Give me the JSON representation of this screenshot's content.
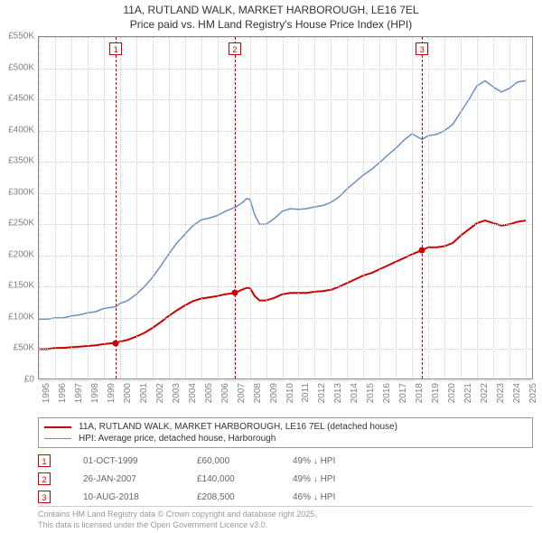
{
  "title_line1": "11A, RUTLAND WALK, MARKET HARBOROUGH, LE16 7EL",
  "title_line2": "Price paid vs. HM Land Registry's House Price Index (HPI)",
  "chart": {
    "type": "line",
    "background_color": "#ffffff",
    "grid_color": "#d0d0d0",
    "border_color": "#888888",
    "x_range": [
      1995,
      2025.5
    ],
    "y_range": [
      0,
      550
    ],
    "y_ticks": [
      0,
      50,
      100,
      150,
      200,
      250,
      300,
      350,
      400,
      450,
      500,
      550
    ],
    "y_tick_labels": [
      "£0",
      "£50K",
      "£100K",
      "£150K",
      "£200K",
      "£250K",
      "£300K",
      "£350K",
      "£400K",
      "£450K",
      "£500K",
      "£550K"
    ],
    "x_ticks": [
      1995,
      1996,
      1997,
      1998,
      1999,
      2000,
      2001,
      2002,
      2003,
      2004,
      2005,
      2006,
      2007,
      2008,
      2009,
      2010,
      2011,
      2012,
      2013,
      2014,
      2015,
      2016,
      2017,
      2018,
      2019,
      2020,
      2021,
      2022,
      2023,
      2024,
      2025
    ],
    "series": [
      {
        "id": "price_paid",
        "label": "11A, RUTLAND WALK, MARKET HARBOROUGH, LE16 7EL (detached house)",
        "color": "#cc0000",
        "line_width": 2,
        "data": [
          [
            1995,
            50
          ],
          [
            1995.5,
            50
          ],
          [
            1996,
            52
          ],
          [
            1996.5,
            52
          ],
          [
            1997,
            53
          ],
          [
            1997.5,
            54
          ],
          [
            1998,
            55
          ],
          [
            1998.5,
            56
          ],
          [
            1999,
            58
          ],
          [
            1999.75,
            60
          ],
          [
            2000,
            62
          ],
          [
            2000.5,
            65
          ],
          [
            2001,
            70
          ],
          [
            2001.5,
            76
          ],
          [
            2002,
            84
          ],
          [
            2002.5,
            93
          ],
          [
            2003,
            103
          ],
          [
            2003.5,
            112
          ],
          [
            2004,
            120
          ],
          [
            2004.5,
            127
          ],
          [
            2005,
            131
          ],
          [
            2005.5,
            133
          ],
          [
            2006,
            135
          ],
          [
            2006.5,
            138
          ],
          [
            2007.08,
            140
          ],
          [
            2007.5,
            145
          ],
          [
            2007.8,
            148
          ],
          [
            2008,
            148
          ],
          [
            2008.3,
            135
          ],
          [
            2008.6,
            128
          ],
          [
            2009,
            128
          ],
          [
            2009.5,
            132
          ],
          [
            2010,
            138
          ],
          [
            2010.5,
            140
          ],
          [
            2011,
            140
          ],
          [
            2011.5,
            140
          ],
          [
            2012,
            142
          ],
          [
            2012.5,
            143
          ],
          [
            2013,
            145
          ],
          [
            2013.5,
            150
          ],
          [
            2014,
            156
          ],
          [
            2014.5,
            162
          ],
          [
            2015,
            168
          ],
          [
            2015.5,
            172
          ],
          [
            2016,
            178
          ],
          [
            2016.5,
            184
          ],
          [
            2017,
            190
          ],
          [
            2017.5,
            196
          ],
          [
            2018,
            202
          ],
          [
            2018.61,
            208.5
          ],
          [
            2019,
            213
          ],
          [
            2019.5,
            213
          ],
          [
            2020,
            215
          ],
          [
            2020.5,
            220
          ],
          [
            2021,
            232
          ],
          [
            2021.5,
            242
          ],
          [
            2022,
            252
          ],
          [
            2022.5,
            256
          ],
          [
            2023,
            252
          ],
          [
            2023.5,
            248
          ],
          [
            2024,
            250
          ],
          [
            2024.5,
            254
          ],
          [
            2025,
            256
          ]
        ]
      },
      {
        "id": "hpi",
        "label": "HPI: Average price, detached house, Harborough",
        "color": "#6b8fc7",
        "line_width": 1.5,
        "data": [
          [
            1995,
            98
          ],
          [
            1995.5,
            98
          ],
          [
            1996,
            100
          ],
          [
            1996.5,
            100
          ],
          [
            1997,
            103
          ],
          [
            1997.5,
            105
          ],
          [
            1998,
            108
          ],
          [
            1998.5,
            110
          ],
          [
            1999,
            115
          ],
          [
            1999.75,
            118
          ],
          [
            2000,
            123
          ],
          [
            2000.5,
            128
          ],
          [
            2001,
            138
          ],
          [
            2001.5,
            150
          ],
          [
            2002,
            165
          ],
          [
            2002.5,
            183
          ],
          [
            2003,
            202
          ],
          [
            2003.5,
            220
          ],
          [
            2004,
            234
          ],
          [
            2004.5,
            248
          ],
          [
            2005,
            257
          ],
          [
            2005.5,
            260
          ],
          [
            2006,
            264
          ],
          [
            2006.5,
            271
          ],
          [
            2007.08,
            277
          ],
          [
            2007.5,
            284
          ],
          [
            2007.8,
            291
          ],
          [
            2008,
            290
          ],
          [
            2008.3,
            265
          ],
          [
            2008.6,
            250
          ],
          [
            2009,
            250
          ],
          [
            2009.5,
            259
          ],
          [
            2010,
            271
          ],
          [
            2010.5,
            275
          ],
          [
            2011,
            274
          ],
          [
            2011.5,
            275
          ],
          [
            2012,
            278
          ],
          [
            2012.5,
            280
          ],
          [
            2013,
            285
          ],
          [
            2013.5,
            294
          ],
          [
            2014,
            307
          ],
          [
            2014.5,
            318
          ],
          [
            2015,
            329
          ],
          [
            2015.5,
            338
          ],
          [
            2016,
            349
          ],
          [
            2016.5,
            361
          ],
          [
            2017,
            372
          ],
          [
            2017.5,
            385
          ],
          [
            2018,
            395
          ],
          [
            2018.61,
            386
          ],
          [
            2019,
            392
          ],
          [
            2019.5,
            394
          ],
          [
            2020,
            400
          ],
          [
            2020.5,
            410
          ],
          [
            2021,
            430
          ],
          [
            2021.5,
            450
          ],
          [
            2022,
            472
          ],
          [
            2022.5,
            480
          ],
          [
            2023,
            470
          ],
          [
            2023.5,
            462
          ],
          [
            2024,
            468
          ],
          [
            2024.5,
            478
          ],
          [
            2025,
            480
          ]
        ]
      }
    ],
    "markers": [
      {
        "n": "1",
        "x": 1999.75,
        "date": "01-OCT-1999",
        "price": "£60,000",
        "hpi": "49% ↓ HPI",
        "dot_y": 60
      },
      {
        "n": "2",
        "x": 2007.07,
        "date": "26-JAN-2007",
        "price": "£140,000",
        "hpi": "49% ↓ HPI",
        "dot_y": 140
      },
      {
        "n": "3",
        "x": 2018.61,
        "date": "10-AUG-2018",
        "price": "£208,500",
        "hpi": "46% ↓ HPI",
        "dot_y": 208.5
      }
    ],
    "axis_label_color": "#808080",
    "axis_fontsize": 10
  },
  "footer_line1": "Contains HM Land Registry data © Crown copyright and database right 2025.",
  "footer_line2": "This data is licensed under the Open Government Licence v3.0."
}
